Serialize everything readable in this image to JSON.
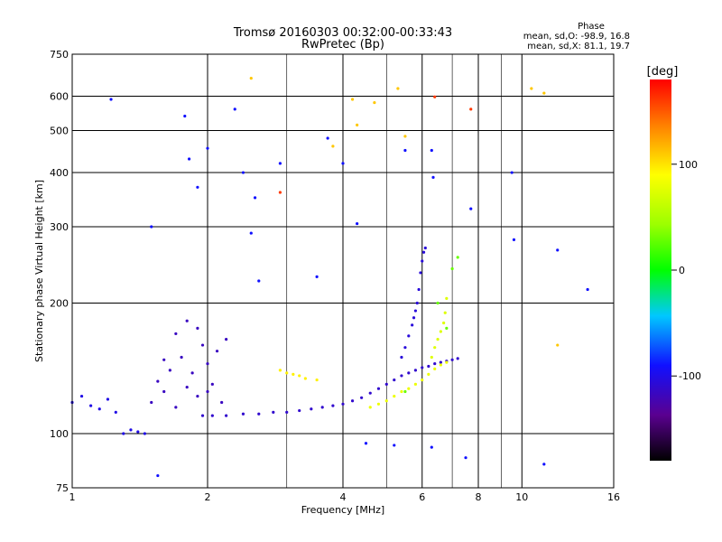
{
  "chart_data": {
    "type": "scatter",
    "title": "Tromsø 20160303 00:32:00-00:33:43",
    "subtitle": "RwPretec (Bp)",
    "xlabel": "Frequency [MHz]",
    "ylabel": "Stationary phase Virtual Height [km]",
    "xscale": "log",
    "yscale": "log",
    "xlim": [
      1,
      16
    ],
    "ylim": [
      75,
      750
    ],
    "xticks": [
      1,
      2,
      4,
      6,
      8,
      10,
      16
    ],
    "yticks": [
      75,
      100,
      200,
      300,
      400,
      500,
      600,
      750
    ],
    "grid": true,
    "stats": {
      "heading": "Phase",
      "line_o": "mean, sd,O: -98.9, 16.8",
      "line_x": "mean, sd,X:  81.1, 19.7"
    },
    "colorbar": {
      "label": "[deg]",
      "range": [
        -180,
        180
      ],
      "ticks": [
        100,
        0,
        -100
      ]
    },
    "series": [
      {
        "trace": "o-mode main trace",
        "phase_deg": -110,
        "points": [
          [
            1.95,
            110
          ],
          [
            2.05,
            110
          ],
          [
            2.2,
            110
          ],
          [
            2.4,
            111
          ],
          [
            2.6,
            111
          ],
          [
            2.8,
            112
          ],
          [
            3.0,
            112
          ],
          [
            3.2,
            113
          ],
          [
            3.4,
            114
          ],
          [
            3.6,
            115
          ],
          [
            3.8,
            116
          ],
          [
            4.0,
            117
          ],
          [
            4.2,
            119
          ],
          [
            4.4,
            121
          ],
          [
            4.6,
            124
          ],
          [
            4.8,
            127
          ],
          [
            5.0,
            130
          ],
          [
            5.2,
            133
          ],
          [
            5.4,
            136
          ],
          [
            5.6,
            138
          ],
          [
            5.8,
            140
          ],
          [
            6.0,
            142
          ],
          [
            6.2,
            143
          ],
          [
            6.4,
            145
          ],
          [
            6.6,
            146
          ],
          [
            6.8,
            147
          ],
          [
            7.0,
            148
          ],
          [
            7.2,
            149
          ]
        ]
      },
      {
        "trace": "o-mode cusp",
        "phase_deg": -105,
        "points": [
          [
            5.4,
            150
          ],
          [
            5.5,
            158
          ],
          [
            5.6,
            168
          ],
          [
            5.7,
            178
          ],
          [
            5.75,
            185
          ],
          [
            5.8,
            192
          ],
          [
            5.85,
            200
          ],
          [
            5.9,
            215
          ],
          [
            5.95,
            235
          ],
          [
            6.0,
            250
          ],
          [
            6.05,
            262
          ],
          [
            6.1,
            268
          ]
        ]
      },
      {
        "trace": "x-mode trace",
        "phase_deg": 82,
        "points": [
          [
            4.6,
            115
          ],
          [
            4.8,
            117
          ],
          [
            5.0,
            119
          ],
          [
            5.2,
            122
          ],
          [
            5.4,
            125
          ],
          [
            5.6,
            127
          ],
          [
            5.8,
            130
          ],
          [
            6.0,
            133
          ],
          [
            6.2,
            137
          ],
          [
            6.4,
            141
          ],
          [
            6.6,
            144
          ],
          [
            6.8,
            146
          ]
        ]
      },
      {
        "trace": "x-mode cusp",
        "phase_deg": 75,
        "points": [
          [
            6.3,
            150
          ],
          [
            6.4,
            158
          ],
          [
            6.5,
            165
          ],
          [
            6.6,
            172
          ],
          [
            6.7,
            180
          ],
          [
            6.75,
            190
          ],
          [
            6.8,
            205
          ]
        ]
      },
      {
        "trace": "x-mode near 3 MHz",
        "phase_deg": 95,
        "points": [
          [
            2.9,
            140
          ],
          [
            3.0,
            138
          ],
          [
            3.1,
            137
          ],
          [
            3.2,
            136
          ],
          [
            3.3,
            134
          ],
          [
            3.5,
            133
          ]
        ]
      },
      {
        "trace": "low E-region echoes",
        "phase_deg": -100,
        "points": [
          [
            1.0,
            118
          ],
          [
            1.05,
            122
          ],
          [
            1.1,
            116
          ],
          [
            1.15,
            114
          ],
          [
            1.2,
            120
          ],
          [
            1.25,
            112
          ],
          [
            1.3,
            100
          ],
          [
            1.35,
            102
          ],
          [
            1.4,
            101
          ],
          [
            1.45,
            100
          ]
        ]
      },
      {
        "trace": "Es cluster",
        "phase_deg": -115,
        "points": [
          [
            1.5,
            118
          ],
          [
            1.55,
            132
          ],
          [
            1.6,
            125
          ],
          [
            1.65,
            140
          ],
          [
            1.7,
            115
          ],
          [
            1.75,
            150
          ],
          [
            1.8,
            128
          ],
          [
            1.85,
            138
          ],
          [
            1.9,
            122
          ],
          [
            1.95,
            160
          ],
          [
            2.0,
            145
          ],
          [
            2.05,
            130
          ],
          [
            2.1,
            155
          ],
          [
            2.15,
            118
          ],
          [
            2.2,
            165
          ],
          [
            1.6,
            148
          ],
          [
            1.7,
            170
          ],
          [
            1.8,
            182
          ],
          [
            1.9,
            175
          ],
          [
            2.0,
            125
          ]
        ]
      },
      {
        "trace": "sparse echoes",
        "phase_deg": -90,
        "points": [
          [
            1.22,
            590
          ],
          [
            1.5,
            300
          ],
          [
            1.78,
            540
          ],
          [
            1.82,
            430
          ],
          [
            1.9,
            370
          ],
          [
            2.0,
            455
          ],
          [
            2.3,
            560
          ],
          [
            2.4,
            400
          ],
          [
            2.5,
            290
          ],
          [
            2.55,
            350
          ],
          [
            2.6,
            225
          ],
          [
            2.9,
            420
          ],
          [
            3.5,
            230
          ],
          [
            3.7,
            480
          ],
          [
            4.0,
            420
          ],
          [
            4.3,
            305
          ],
          [
            5.5,
            450
          ],
          [
            6.3,
            450
          ],
          [
            6.35,
            390
          ],
          [
            7.7,
            330
          ],
          [
            9.5,
            400
          ],
          [
            9.6,
            280
          ],
          [
            12.0,
            265
          ],
          [
            14.0,
            215
          ],
          [
            1.55,
            80
          ],
          [
            4.5,
            95
          ],
          [
            5.2,
            94
          ],
          [
            6.3,
            93
          ],
          [
            11.2,
            85
          ],
          [
            7.5,
            88
          ]
        ]
      },
      {
        "trace": "high-phase echoes",
        "phase_deg": 110,
        "points": [
          [
            2.5,
            660
          ],
          [
            3.8,
            460
          ],
          [
            4.2,
            590
          ],
          [
            4.3,
            515
          ],
          [
            5.3,
            625
          ],
          [
            10.5,
            625
          ],
          [
            11.2,
            610
          ],
          [
            12.0,
            160
          ],
          [
            5.5,
            485
          ],
          [
            4.7,
            580
          ]
        ]
      },
      {
        "trace": "green echoes",
        "phase_deg": 30,
        "points": [
          [
            5.5,
            125
          ],
          [
            6.8,
            175
          ],
          [
            7.0,
            240
          ],
          [
            7.2,
            255
          ],
          [
            6.5,
            200
          ]
        ]
      },
      {
        "trace": "red echoes",
        "phase_deg": 160,
        "points": [
          [
            2.9,
            360
          ],
          [
            7.7,
            560
          ],
          [
            6.4,
            598
          ]
        ]
      }
    ]
  }
}
